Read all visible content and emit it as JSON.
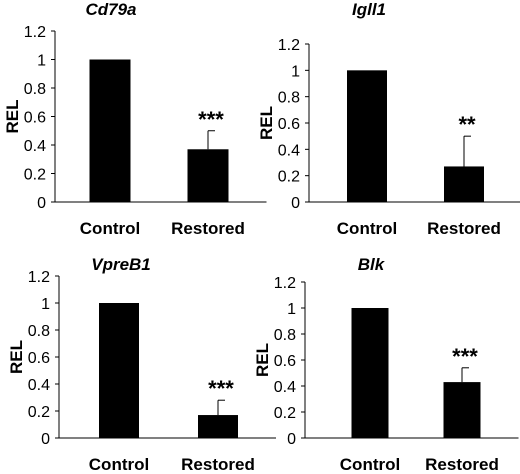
{
  "chart_data": [
    {
      "type": "bar",
      "title": "Cd79a",
      "ylabel": "REL",
      "categories": [
        "Control",
        "Restored"
      ],
      "values": [
        1.0,
        0.37
      ],
      "error_plus": [
        0,
        0.13
      ],
      "significance": [
        "",
        "***"
      ],
      "ylim": [
        0,
        1.2
      ],
      "yticks": [
        "0",
        "0.2",
        "0.4",
        "0.6",
        "0.8",
        "1",
        "1.2"
      ]
    },
    {
      "type": "bar",
      "title": "Igll1",
      "ylabel": "REL",
      "categories": [
        "Control",
        "Restored"
      ],
      "values": [
        1.0,
        0.27
      ],
      "error_plus": [
        0,
        0.23
      ],
      "significance": [
        "",
        "**"
      ],
      "ylim": [
        0,
        1.2
      ],
      "yticks": [
        "0",
        "0.2",
        "0.4",
        "0.6",
        "0.8",
        "1",
        "1.2"
      ]
    },
    {
      "type": "bar",
      "title": "VpreB1",
      "ylabel": "REL",
      "categories": [
        "Control",
        "Restored"
      ],
      "values": [
        1.0,
        0.17
      ],
      "error_plus": [
        0,
        0.11
      ],
      "significance": [
        "",
        "***"
      ],
      "ylim": [
        0,
        1.2
      ],
      "yticks": [
        "0",
        "0.2",
        "0.4",
        "0.6",
        "0.8",
        "1",
        "1.2"
      ]
    },
    {
      "type": "bar",
      "title": "Blk",
      "ylabel": "REL",
      "categories": [
        "Control",
        "Restored"
      ],
      "values": [
        1.0,
        0.43
      ],
      "error_plus": [
        0,
        0.11
      ],
      "significance": [
        "",
        "***"
      ],
      "ylim": [
        0,
        1.2
      ],
      "yticks": [
        "0",
        "0.2",
        "0.4",
        "0.6",
        "0.8",
        "1",
        "1.2"
      ]
    }
  ]
}
